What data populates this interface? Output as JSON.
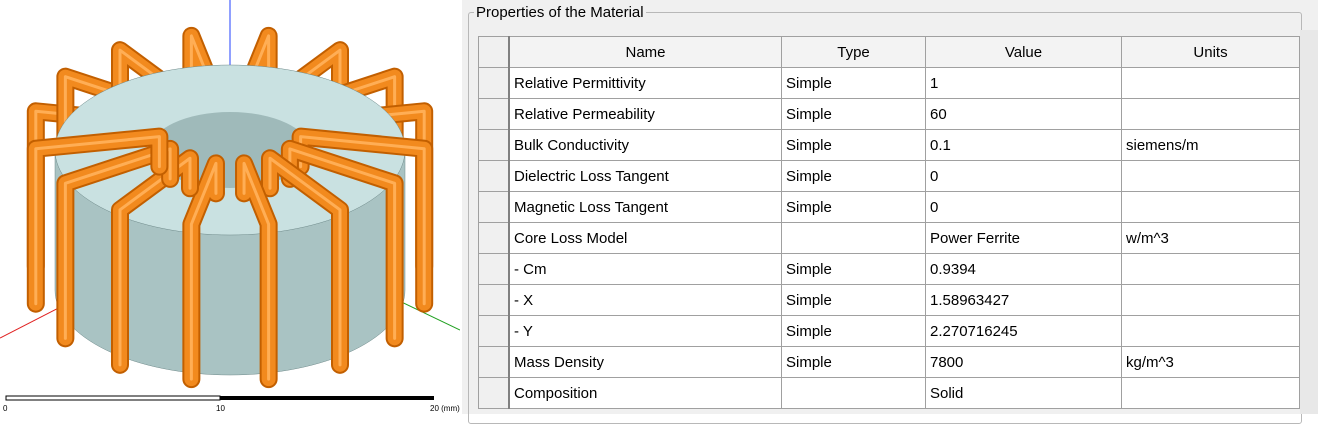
{
  "viewport": {
    "scale_labels": [
      "0",
      "10",
      "20 (mm)"
    ]
  },
  "panel": {
    "title": "Properties of the Material",
    "table": {
      "columns": [
        "Name",
        "Type",
        "Value",
        "Units"
      ],
      "rows": [
        {
          "name": "Relative Permittivity",
          "type": "Simple",
          "value": "1"
        },
        {
          "name": "Relative Permeability",
          "type": "Simple",
          "value": "60"
        },
        {
          "name": "Bulk Conductivity",
          "type": "Simple",
          "value": "0.1",
          "units": "siemens/m"
        },
        {
          "name": "Dielectric Loss Tangent",
          "type": "Simple",
          "value": "0"
        },
        {
          "name": "Magnetic Loss Tangent",
          "type": "Simple",
          "value": "0"
        },
        {
          "name": "Core Loss Model",
          "value": "Power Ferrite",
          "units": "w/m^3"
        },
        {
          "name": "- Cm",
          "type": "Simple",
          "value": "0.9394"
        },
        {
          "name": "- X",
          "type": "Simple",
          "value": "1.58963427"
        },
        {
          "name": "- Y",
          "type": "Simple",
          "value": "2.270716245"
        },
        {
          "name": "Mass Density",
          "type": "Simple",
          "value": "7800",
          "units": "kg/m^3"
        },
        {
          "name": "Composition",
          "value": "Solid"
        }
      ]
    }
  }
}
